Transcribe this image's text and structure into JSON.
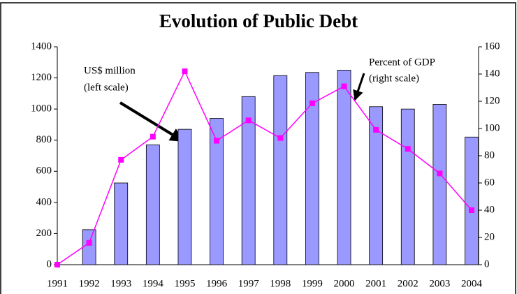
{
  "chart_data": {
    "type": "bar_line",
    "title": "Evolution of Public Debt",
    "categories": [
      "1991",
      "1992",
      "1993",
      "1994",
      "1995",
      "1996",
      "1997",
      "1998",
      "1999",
      "2000",
      "2001",
      "2002",
      "2003",
      "2004"
    ],
    "series": [
      {
        "name": "US$ million",
        "color": "#9999ff",
        "values": [
          0,
          225,
          525,
          770,
          870,
          940,
          1080,
          1215,
          1235,
          1250,
          1015,
          1000,
          1030,
          820
        ]
      },
      {
        "name": "Percent of GDP",
        "color": "#ff00ff",
        "axis": "y2",
        "values": [
          0,
          16,
          77,
          94,
          142,
          91,
          106,
          93,
          118.5,
          131,
          99,
          85,
          67,
          40
        ]
      }
    ],
    "annotations": [
      {
        "lines": [
          "US$ million",
          "(left scale)"
        ]
      },
      {
        "lines": [
          "Percent of GDP",
          "(right scale)"
        ]
      }
    ],
    "ylim": [
      0,
      1400
    ],
    "yticks": [
      0,
      200,
      400,
      600,
      800,
      1000,
      1200,
      1400
    ],
    "y2lim": [
      0,
      160
    ],
    "y2ticks": [
      0,
      20,
      40,
      60,
      80,
      100,
      120,
      140,
      160
    ],
    "grid": false
  }
}
